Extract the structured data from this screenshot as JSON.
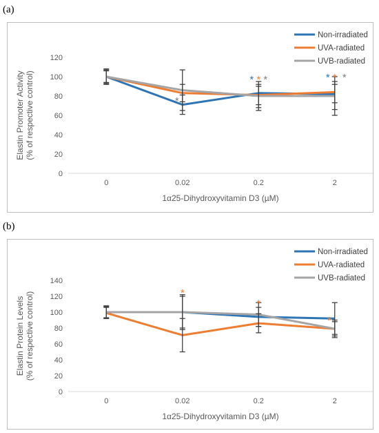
{
  "panels": [
    {
      "label": "(a)",
      "chart_data": {
        "type": "line",
        "categories": [
          "0",
          "0.02",
          "0.2",
          "2"
        ],
        "ylabel": [
          "Elastin Promoter Activity",
          "(% of respective control)"
        ],
        "xlabel": "1α25-Dihydroxyvitamin D3 (µM)",
        "ylim": [
          0,
          120
        ],
        "yticks": [
          0,
          20,
          40,
          60,
          80,
          100,
          120
        ],
        "legend": "top-right",
        "grid": false,
        "series": [
          {
            "name": "Non-irradiated",
            "color": "#2e75b6",
            "values": [
              100,
              71,
              83,
              82
            ],
            "errors": [
              {
                "lo": 92,
                "hi": 108
              },
              {
                "lo": 61,
                "hi": 81
              },
              {
                "lo": 71,
                "hi": 95
              },
              {
                "lo": 60,
                "hi": 100
              }
            ]
          },
          {
            "name": "UVA-radiated",
            "color": "#ed7d31",
            "values": [
              100,
              83,
              81,
              84
            ],
            "errors": [
              {
                "lo": 93,
                "hi": 107
              },
              {
                "lo": 74,
                "hi": 92
              },
              {
                "lo": 68,
                "hi": 90
              },
              {
                "lo": 73,
                "hi": 95
              }
            ]
          },
          {
            "name": "UVB-radiated",
            "color": "#a5a5a5",
            "values": [
              100,
              86,
              80,
              80
            ],
            "errors": [
              {
                "lo": 94,
                "hi": 106
              },
              {
                "lo": 65,
                "hi": 107
              },
              {
                "lo": 65,
                "hi": 92
              },
              {
                "lo": 66,
                "hi": 92
              }
            ]
          }
        ],
        "annotations": [
          {
            "category": "0.02",
            "text": "*",
            "color": "#7f7f7f",
            "y": 78,
            "dx": -8
          },
          {
            "category": "0.2",
            "text": "*",
            "color": "#2e75b6",
            "y": 100,
            "dx": -10
          },
          {
            "category": "0.2",
            "text": "*",
            "color": "#ed7d31",
            "y": 100,
            "dx": 0
          },
          {
            "category": "0.2",
            "text": "*",
            "color": "#7f7f7f",
            "y": 100,
            "dx": 10
          },
          {
            "category": "2",
            "text": "*",
            "color": "#2e75b6",
            "y": 102,
            "dx": -10
          },
          {
            "category": "2",
            "text": "*",
            "color": "#ed7d31",
            "y": 102,
            "dx": 0
          },
          {
            "category": "2",
            "text": "*",
            "color": "#7f7f7f",
            "y": 102,
            "dx": 14
          }
        ]
      }
    },
    {
      "label": "(b)",
      "chart_data": {
        "type": "line",
        "categories": [
          "0",
          "0.02",
          "0.2",
          "2"
        ],
        "ylabel": [
          "Elastin Protein Levels",
          "(% of respective control)"
        ],
        "xlabel": "1α25-Dihydroxyvitamin D3 (µM)",
        "ylim": [
          0,
          140
        ],
        "yticks": [
          0,
          20,
          40,
          60,
          80,
          100,
          120,
          140
        ],
        "legend": "top-right",
        "grid": false,
        "series": [
          {
            "name": "Non-irradiated",
            "color": "#2e75b6",
            "values": [
              100,
              100,
              94,
              92
            ],
            "errors": [
              {
                "lo": 93,
                "hi": 107
              },
              {
                "lo": 80,
                "hi": 120
              },
              {
                "lo": 82,
                "hi": 106
              },
              {
                "lo": 72,
                "hi": 112
              }
            ]
          },
          {
            "name": "UVA-radiated",
            "color": "#ed7d31",
            "values": [
              99,
              71,
              86,
              79
            ],
            "errors": [
              {
                "lo": 92,
                "hi": 106
              },
              {
                "lo": 50,
                "hi": 92
              },
              {
                "lo": 74,
                "hi": 98
              },
              {
                "lo": 70,
                "hi": 88
              }
            ]
          },
          {
            "name": "UVB-radiated",
            "color": "#a5a5a5",
            "values": [
              100,
              100,
              97,
              79
            ],
            "errors": [
              {
                "lo": 92,
                "hi": 108
              },
              {
                "lo": 78,
                "hi": 122
              },
              {
                "lo": 82,
                "hi": 112
              },
              {
                "lo": 68,
                "hi": 90
              }
            ]
          }
        ],
        "annotations": [
          {
            "category": "0.02",
            "text": "*",
            "color": "#ed7d31",
            "y": 128,
            "dx": 0
          },
          {
            "category": "0.2",
            "text": "*",
            "color": "#ed7d31",
            "y": 115,
            "dx": 0
          },
          {
            "category": "2",
            "text": "*",
            "color": "#ed7d31",
            "y": 93,
            "dx": -8
          }
        ]
      }
    }
  ]
}
